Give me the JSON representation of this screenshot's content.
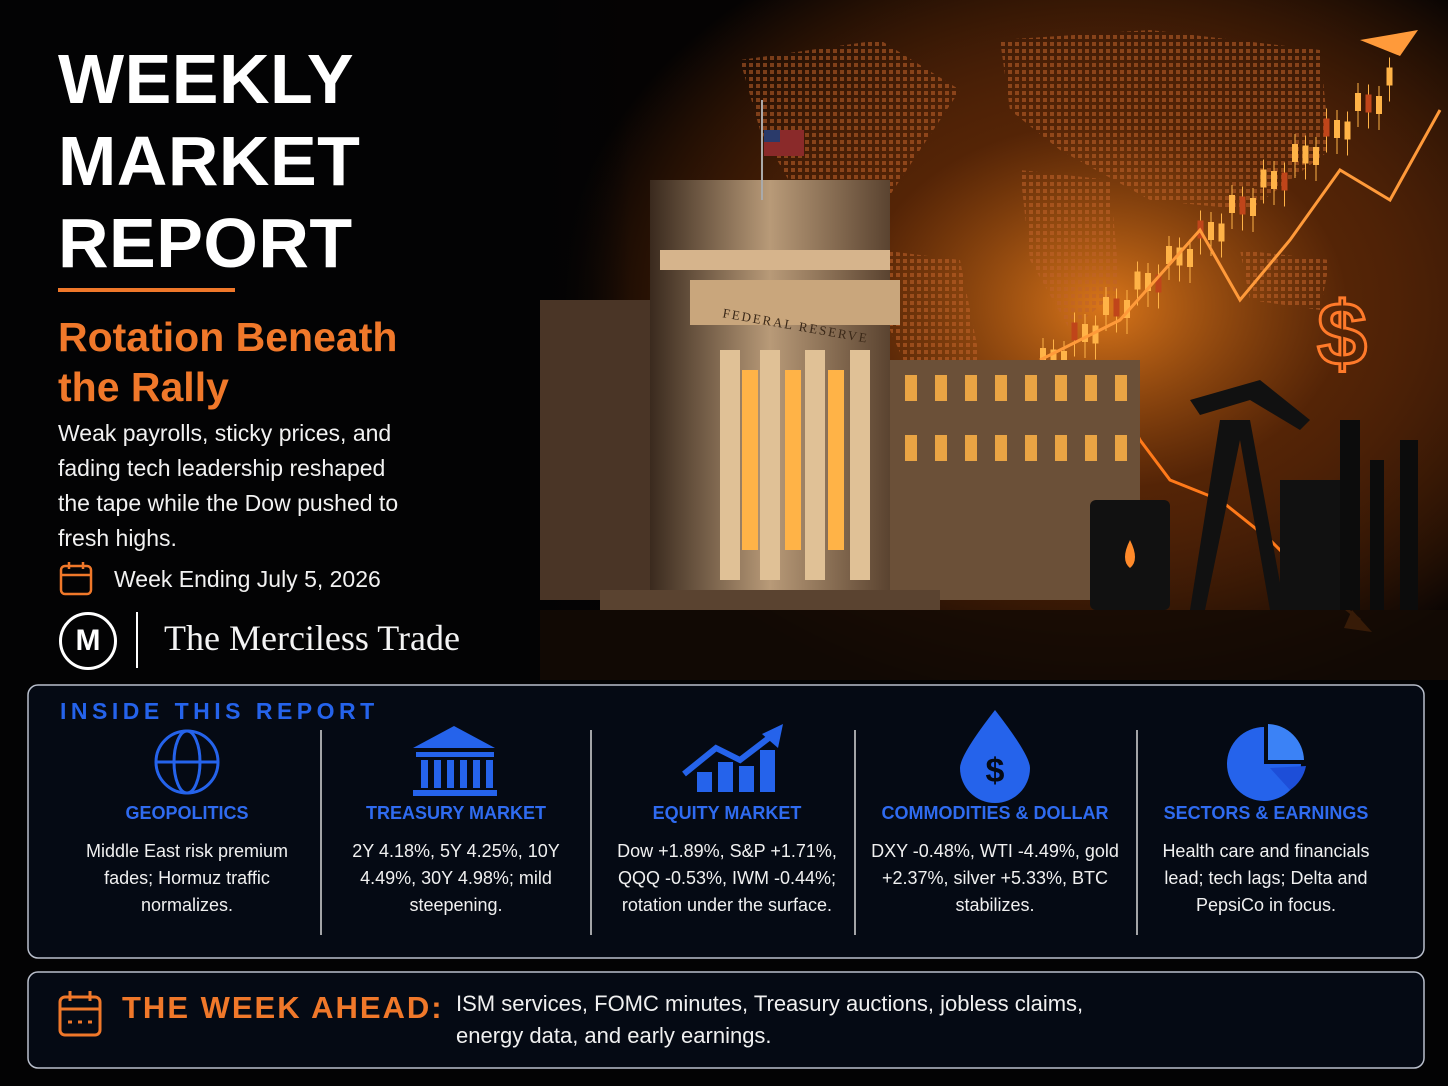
{
  "header": {
    "title_lines": [
      "WEEKLY",
      "MARKET",
      "REPORT"
    ],
    "subtitle": "Rotation Beneath the Rally",
    "description": "Weak payrolls, sticky prices, and fading tech leadership reshaped the tape while the Dow pushed to fresh highs.",
    "date": "Week Ending July 5, 2026",
    "logo_letter": "M",
    "brand": "The Merciless Trade"
  },
  "illustration": {
    "building_label": "FEDERAL RESERVE",
    "currency_symbol": "$"
  },
  "inside": {
    "heading": "INSIDE THIS REPORT",
    "sections": [
      {
        "title": "GEOPOLITICS",
        "text": "Middle East risk premium fades; Hormuz traffic normalizes."
      },
      {
        "title": "TREASURY MARKET",
        "text": "2Y 4.18%, 5Y 4.25%, 10Y 4.49%, 30Y 4.98%; mild steepening."
      },
      {
        "title": "EQUITY MARKET",
        "text": "Dow +1.89%, S&P +1.71%, QQQ -0.53%, IWM -0.44%; rotation under the surface."
      },
      {
        "title": "COMMODITIES & DOLLAR",
        "text": "DXY -0.48%, WTI -4.49%, gold +2.37%, silver +5.33%, BTC stabilizes."
      },
      {
        "title": "SECTORS & EARNINGS",
        "text": "Health care and financials lead; tech lags; Delta and PepsiCo in focus."
      }
    ]
  },
  "week_ahead": {
    "label": "THE WEEK AHEAD:",
    "text": "ISM services, FOMC minutes, Treasury auctions, jobless claims, energy data, and early earnings."
  }
}
